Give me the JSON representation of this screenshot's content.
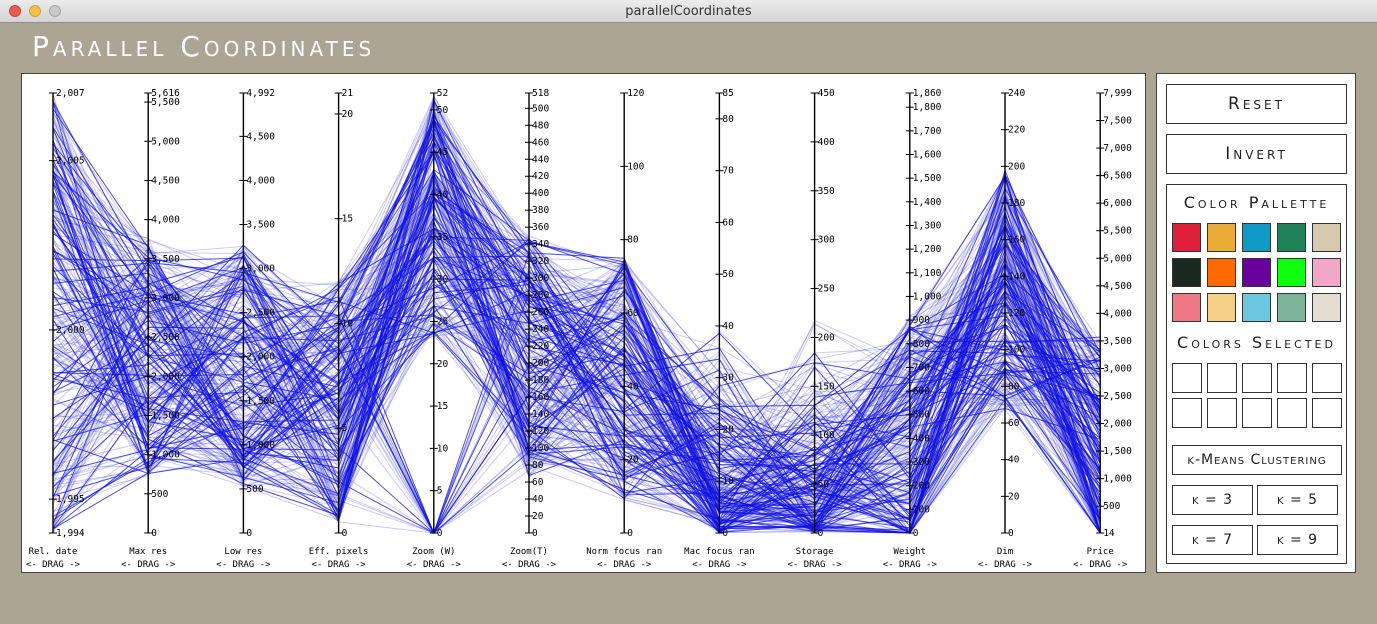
{
  "window": {
    "title": "parallelCoordinates"
  },
  "app_title": "Parallel Coordinates",
  "axes": [
    {
      "label": "Rel. date",
      "min": 1994,
      "max": 2007,
      "ticks": [
        "2,007",
        "2,005",
        "2,000",
        "1,995",
        "1,994"
      ],
      "tick_vals": [
        2007,
        2005,
        2000,
        1995,
        1994
      ]
    },
    {
      "label": "Max res",
      "min": 0,
      "max": 5616,
      "ticks": [
        "5,616",
        "5,500",
        "5,000",
        "4,500",
        "4,000",
        "3,500",
        "3,000",
        "2,500",
        "2,000",
        "1,500",
        "1,000",
        "500",
        "0"
      ],
      "tick_vals": [
        5616,
        5500,
        5000,
        4500,
        4000,
        3500,
        3000,
        2500,
        2000,
        1500,
        1000,
        500,
        0
      ]
    },
    {
      "label": "Low res",
      "min": 0,
      "max": 4992,
      "ticks": [
        "4,992",
        "4,500",
        "4,000",
        "3,500",
        "3,000",
        "2,500",
        "2,000",
        "1,500",
        "1,000",
        "500",
        "0"
      ],
      "tick_vals": [
        4992,
        4500,
        4000,
        3500,
        3000,
        2500,
        2000,
        1500,
        1000,
        500,
        0
      ]
    },
    {
      "label": "Eff. pixels",
      "min": 0,
      "max": 21,
      "ticks": [
        "21",
        "20",
        "15",
        "10",
        "5",
        "0"
      ],
      "tick_vals": [
        21,
        20,
        15,
        10,
        5,
        0
      ]
    },
    {
      "label": "Zoom (W)",
      "min": 0,
      "max": 52,
      "ticks": [
        "52",
        "50",
        "45",
        "40",
        "35",
        "30",
        "25",
        "20",
        "15",
        "10",
        "5",
        "0"
      ],
      "tick_vals": [
        52,
        50,
        45,
        40,
        35,
        30,
        25,
        20,
        15,
        10,
        5,
        0
      ]
    },
    {
      "label": "Zoom(T)",
      "min": 0,
      "max": 518,
      "ticks": [
        "518",
        "500",
        "480",
        "460",
        "440",
        "420",
        "400",
        "380",
        "360",
        "340",
        "320",
        "300",
        "280",
        "260",
        "240",
        "220",
        "200",
        "180",
        "160",
        "140",
        "120",
        "100",
        "80",
        "60",
        "40",
        "20",
        "0"
      ],
      "tick_vals": [
        518,
        500,
        480,
        460,
        440,
        420,
        400,
        380,
        360,
        340,
        320,
        300,
        280,
        260,
        240,
        220,
        200,
        180,
        160,
        140,
        120,
        100,
        80,
        60,
        40,
        20,
        0
      ]
    },
    {
      "label": "Norm focus ran",
      "min": 0,
      "max": 120,
      "ticks": [
        "120",
        "100",
        "80",
        "60",
        "40",
        "20",
        "0"
      ],
      "tick_vals": [
        120,
        100,
        80,
        60,
        40,
        20,
        0
      ]
    },
    {
      "label": "Mac focus ran",
      "min": 0,
      "max": 85,
      "ticks": [
        "85",
        "80",
        "70",
        "60",
        "50",
        "40",
        "30",
        "20",
        "10",
        "0"
      ],
      "tick_vals": [
        85,
        80,
        70,
        60,
        50,
        40,
        30,
        20,
        10,
        0
      ]
    },
    {
      "label": "Storage",
      "min": 0,
      "max": 450,
      "ticks": [
        "450",
        "400",
        "350",
        "300",
        "250",
        "200",
        "150",
        "100",
        "50",
        "0"
      ],
      "tick_vals": [
        450,
        400,
        350,
        300,
        250,
        200,
        150,
        100,
        50,
        0
      ]
    },
    {
      "label": "Weight",
      "min": 0,
      "max": 1860,
      "ticks": [
        "1,860",
        "1,800",
        "1,700",
        "1,600",
        "1,500",
        "1,400",
        "1,300",
        "1,200",
        "1,100",
        "1,000",
        "900",
        "800",
        "700",
        "600",
        "500",
        "400",
        "300",
        "200",
        "100",
        "0"
      ],
      "tick_vals": [
        1860,
        1800,
        1700,
        1600,
        1500,
        1400,
        1300,
        1200,
        1100,
        1000,
        900,
        800,
        700,
        600,
        500,
        400,
        300,
        200,
        100,
        0
      ]
    },
    {
      "label": "Dim",
      "min": 0,
      "max": 240,
      "ticks": [
        "240",
        "220",
        "200",
        "180",
        "160",
        "140",
        "120",
        "100",
        "80",
        "60",
        "40",
        "20",
        "0"
      ],
      "tick_vals": [
        240,
        220,
        200,
        180,
        160,
        140,
        120,
        100,
        80,
        60,
        40,
        20,
        0
      ]
    },
    {
      "label": "Price",
      "min": 14,
      "max": 7999,
      "ticks": [
        "7,999",
        "7,500",
        "7,000",
        "6,500",
        "6,000",
        "5,500",
        "5,000",
        "4,500",
        "4,000",
        "3,500",
        "3,000",
        "2,500",
        "2,000",
        "1,500",
        "1,000",
        "500",
        "14"
      ],
      "tick_vals": [
        7999,
        7500,
        7000,
        6500,
        6000,
        5500,
        5000,
        4500,
        4000,
        3500,
        3000,
        2500,
        2000,
        1500,
        1000,
        500,
        14
      ]
    }
  ],
  "drag_label": "<- DRAG ->",
  "line_color": "#1010e0",
  "buttons": {
    "reset": "Reset",
    "invert": "Invert"
  },
  "palette": {
    "title": "Color Pallette",
    "colors": [
      "#e0203a",
      "#eaab37",
      "#109ac8",
      "#208058",
      "#d7c9ae",
      "#1a2a22",
      "#ff6a00",
      "#6a009e",
      "#10ff10",
      "#f3a7c8",
      "#ef7a86",
      "#f5d088",
      "#6cc8e0",
      "#7db49a",
      "#e5ddcf"
    ]
  },
  "selected": {
    "title": "Colors Selected",
    "slots": 10
  },
  "clustering": {
    "label": "k-Means Clustering",
    "k_buttons": [
      "k = 3",
      "k = 5",
      "k = 7",
      "k = 9"
    ]
  }
}
